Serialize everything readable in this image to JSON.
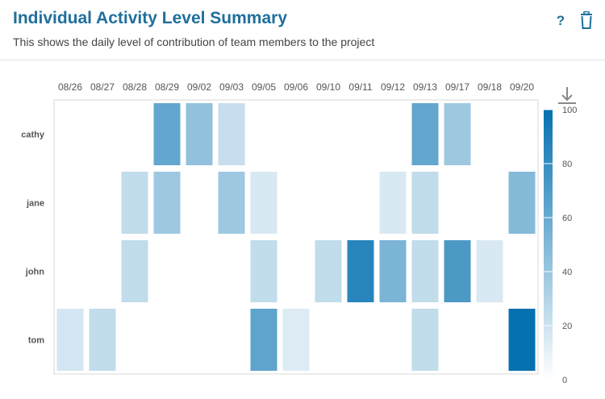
{
  "header": {
    "title": "Individual Activity Level Summary",
    "subtitle": "This shows the daily level of contribution of team members to the project",
    "help_icon": "help-icon",
    "delete_icon": "trash-icon",
    "help_symbol": "?"
  },
  "toolbar": {
    "download_icon": "download-icon"
  },
  "chart_data": {
    "type": "heatmap",
    "title": "",
    "xlabel": "",
    "ylabel": "",
    "x": [
      "08/26",
      "08/27",
      "08/28",
      "08/29",
      "09/02",
      "09/03",
      "09/05",
      "09/06",
      "09/10",
      "09/11",
      "09/12",
      "09/13",
      "09/17",
      "09/18",
      "09/20"
    ],
    "y": [
      "cathy",
      "jane",
      "john",
      "tom"
    ],
    "values": [
      [
        null,
        null,
        null,
        60,
        40,
        18,
        null,
        null,
        null,
        null,
        null,
        60,
        35,
        null,
        null
      ],
      [
        null,
        null,
        20,
        35,
        null,
        35,
        10,
        null,
        null,
        null,
        10,
        20,
        null,
        null,
        45
      ],
      [
        null,
        null,
        20,
        null,
        null,
        null,
        20,
        null,
        20,
        85,
        50,
        20,
        70,
        10,
        null
      ],
      [
        12,
        20,
        null,
        null,
        null,
        null,
        62,
        8,
        null,
        null,
        null,
        20,
        null,
        null,
        100
      ]
    ],
    "color_scale": {
      "min": 0,
      "max": 100,
      "ticks": [
        0,
        20,
        40,
        60,
        80,
        100
      ],
      "low_color": "#ffffff",
      "high_color": "#0571b0"
    },
    "grid": false,
    "legend": "right"
  }
}
